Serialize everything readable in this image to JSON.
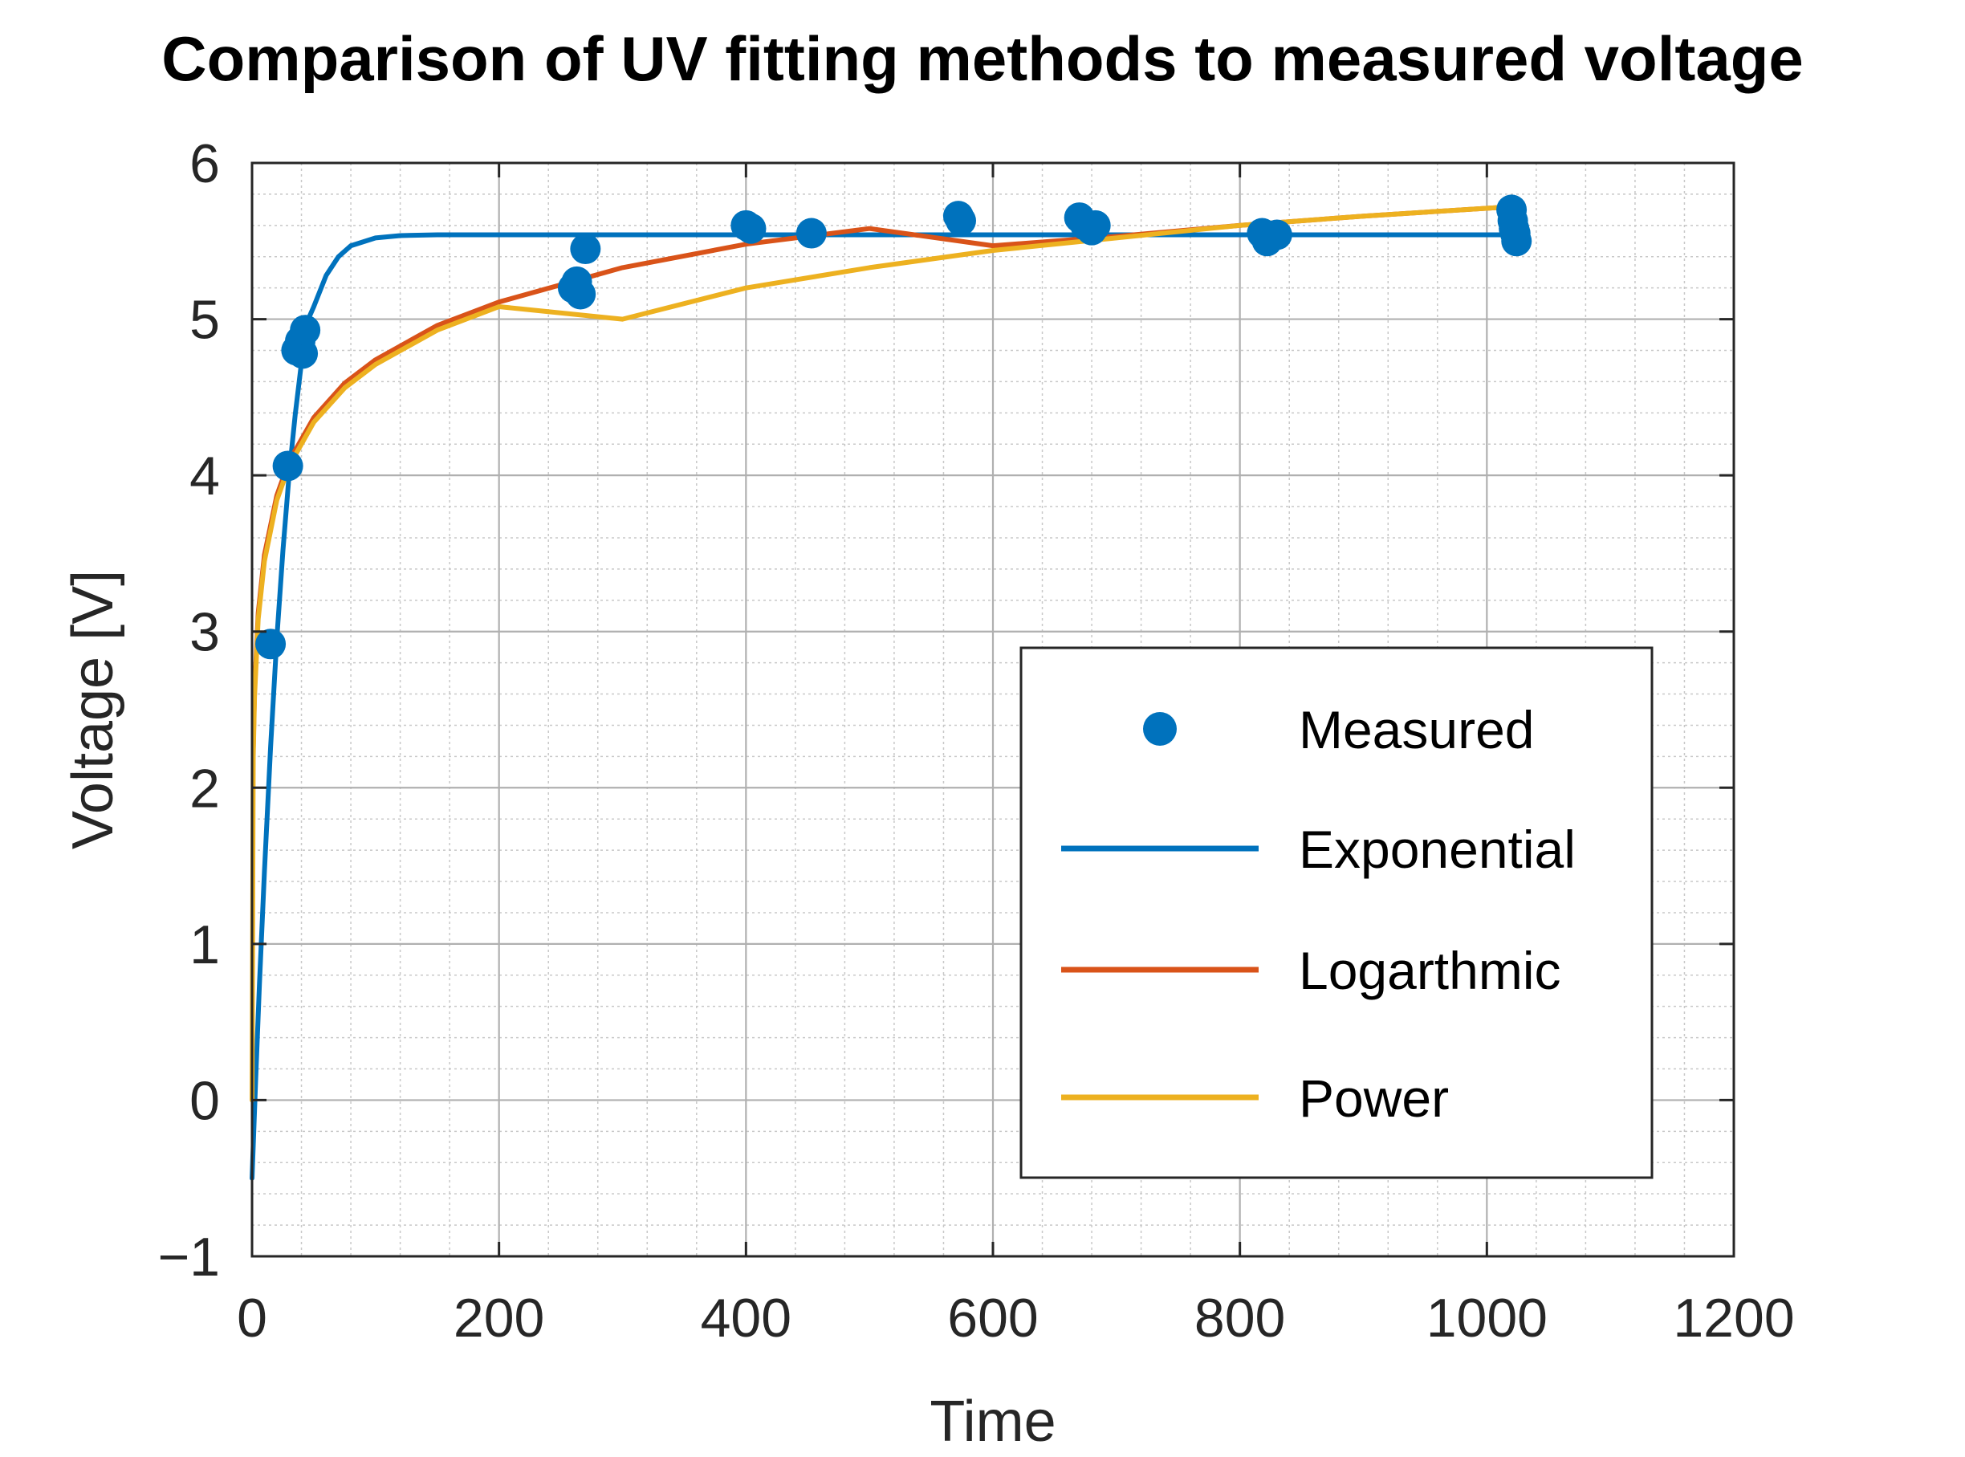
{
  "chart_data": {
    "type": "line",
    "title": "Comparison of UV fitting methods to measured voltage",
    "xlabel": "Time",
    "ylabel": "Voltage [V]",
    "xlim": [
      0,
      1200
    ],
    "ylim": [
      -1,
      6
    ],
    "xticks": [
      0,
      200,
      400,
      600,
      800,
      1000,
      1200
    ],
    "xtick_labels": [
      "0",
      "200",
      "400",
      "600",
      "800",
      "1000",
      "1200"
    ],
    "yticks": [
      -1,
      0,
      1,
      2,
      3,
      4,
      5,
      6
    ],
    "ytick_labels": [
      "−1",
      "0",
      "1",
      "2",
      "3",
      "4",
      "5",
      "6"
    ],
    "grid": true,
    "minor_grid": true,
    "legend_position": "lower-right",
    "series": [
      {
        "name": "Measured",
        "kind": "scatter",
        "color": "#0072BD",
        "x": [
          15,
          29,
          36,
          39,
          41,
          43,
          260,
          263,
          266,
          270,
          400,
          404,
          453,
          572,
          574,
          670,
          675,
          680,
          683,
          818,
          822,
          826,
          830,
          1020,
          1021,
          1022,
          1023,
          1024
        ],
        "y": [
          2.92,
          4.06,
          4.8,
          4.86,
          4.78,
          4.93,
          5.2,
          5.24,
          5.16,
          5.45,
          5.6,
          5.58,
          5.55,
          5.66,
          5.63,
          5.65,
          5.6,
          5.57,
          5.6,
          5.55,
          5.5,
          5.53,
          5.54,
          5.7,
          5.63,
          5.58,
          5.55,
          5.5
        ]
      },
      {
        "name": "Exponential",
        "kind": "line",
        "color": "#0072BD",
        "x": [
          0,
          3,
          6,
          10,
          15,
          20,
          25,
          30,
          35,
          40,
          45,
          50,
          60,
          70,
          80,
          100,
          120,
          150,
          200,
          300,
          400,
          600,
          800,
          1020
        ],
        "y": [
          -0.5,
          0.14,
          0.74,
          1.46,
          2.26,
          2.95,
          3.52,
          4.0,
          4.39,
          4.72,
          4.99,
          5.08,
          5.28,
          5.4,
          5.47,
          5.52,
          5.535,
          5.54,
          5.54,
          5.54,
          5.54,
          5.54,
          5.54,
          5.54
        ]
      },
      {
        "name": "Logarthmic",
        "kind": "line",
        "color": "#D95319",
        "x": [
          1,
          2,
          5,
          10,
          20,
          30,
          50,
          75,
          100,
          150,
          200,
          300,
          400,
          500,
          600,
          700,
          800,
          900,
          1020
        ],
        "y": [
          2.25,
          2.62,
          3.12,
          3.49,
          3.87,
          4.09,
          4.37,
          4.59,
          4.74,
          4.96,
          5.11,
          5.33,
          5.48,
          5.58,
          5.47,
          5.53,
          5.6,
          5.66,
          5.72
        ]
      },
      {
        "name": "Power",
        "kind": "line",
        "color": "#EDB120",
        "x": [
          0,
          1,
          2,
          5,
          10,
          20,
          30,
          50,
          75,
          100,
          150,
          200,
          300,
          400,
          500,
          600,
          700,
          800,
          900,
          1020
        ],
        "y": [
          0.0,
          2.2,
          2.58,
          3.08,
          3.45,
          3.84,
          4.06,
          4.34,
          4.56,
          4.71,
          4.93,
          5.08,
          5.0,
          5.2,
          5.33,
          5.44,
          5.52,
          5.6,
          5.66,
          5.72
        ]
      }
    ]
  }
}
